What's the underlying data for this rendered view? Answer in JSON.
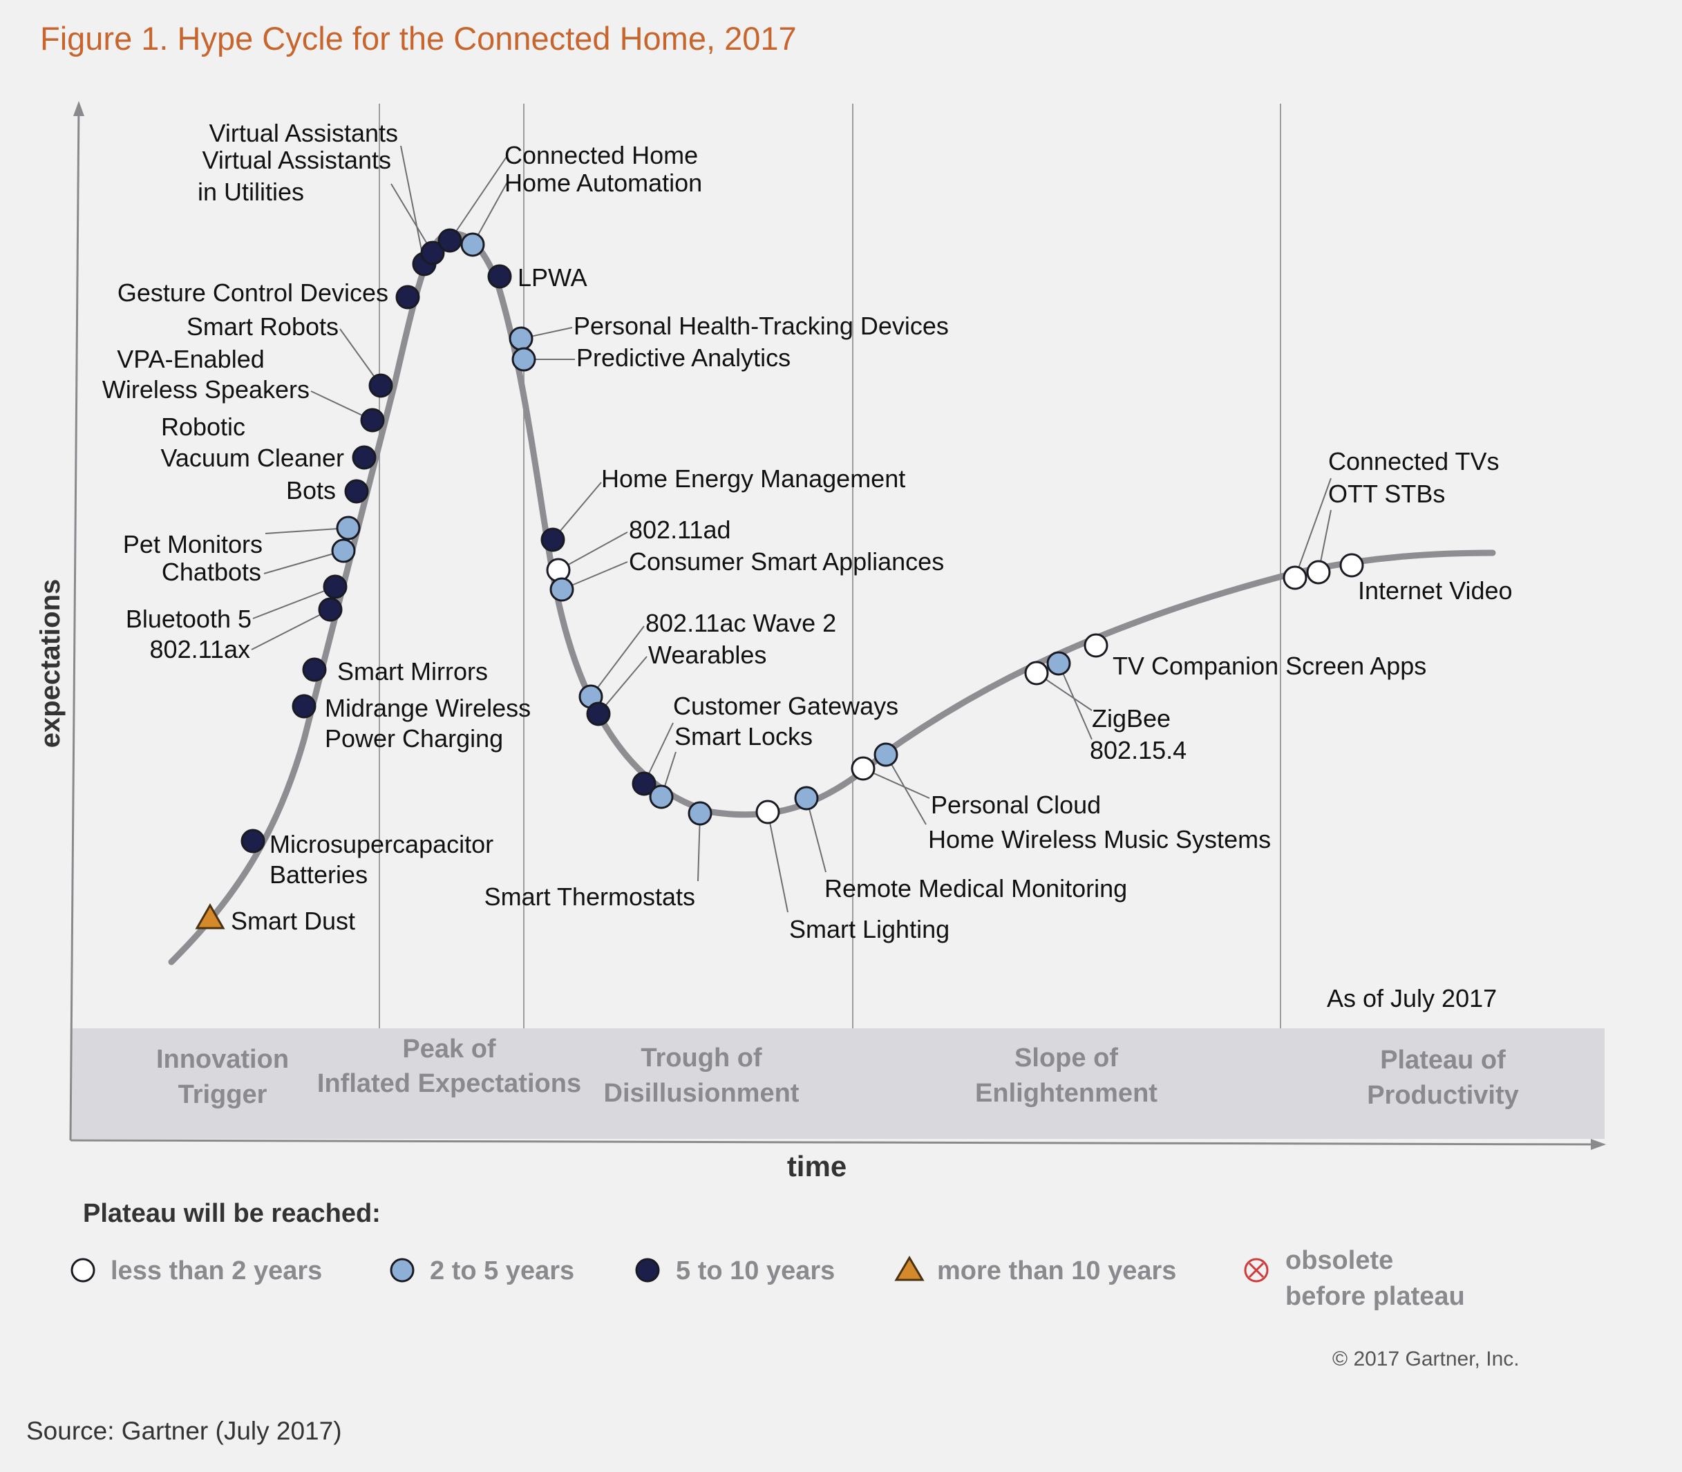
{
  "figure_title": "Figure 1. Hype Cycle for the Connected Home, 2017",
  "source": "Source: Gartner (July 2017)",
  "copyright": "© 2017 Gartner, Inc.",
  "as_of": "As of July 2017",
  "colors": {
    "title": "#c8652d",
    "curve": "#8d8d92",
    "less_than_2": "#ffffff",
    "2_to_5": "#8fb0d6",
    "5_to_10": "#1c1f4a",
    "more_than_10": "#d4892a",
    "obsolete": "#d03a3a",
    "phase_band": "#d9d8dc"
  },
  "chart_data": {
    "type": "scatter",
    "title": "Figure 1. Hype Cycle for the Connected Home, 2017",
    "xlabel": "time",
    "ylabel": "expectations",
    "phases": [
      "Innovation Trigger",
      "Peak of Inflated Expectations",
      "Trough of Disillusionment",
      "Slope of Enlightenment",
      "Plateau of Productivity"
    ],
    "legend": {
      "title": "Plateau will be reached:",
      "items": [
        {
          "key": "lt2",
          "label": "less than 2 years"
        },
        {
          "key": "2to5",
          "label": "2 to 5 years"
        },
        {
          "key": "5to10",
          "label": "5 to 10 years"
        },
        {
          "key": "gt10",
          "label": "more than 10 years"
        },
        {
          "key": "obsolete",
          "label": "obsolete before plateau"
        }
      ]
    },
    "technologies": [
      {
        "name": "Smart Dust",
        "category": "gt10",
        "phase": "Innovation Trigger"
      },
      {
        "name": "Microsupercapacitor Batteries",
        "category": "5to10",
        "phase": "Innovation Trigger"
      },
      {
        "name": "Midrange Wireless Power Charging",
        "category": "5to10",
        "phase": "Innovation Trigger"
      },
      {
        "name": "Smart Mirrors",
        "category": "5to10",
        "phase": "Innovation Trigger"
      },
      {
        "name": "802.11ax",
        "category": "5to10",
        "phase": "Innovation Trigger"
      },
      {
        "name": "Bluetooth 5",
        "category": "5to10",
        "phase": "Innovation Trigger"
      },
      {
        "name": "Chatbots",
        "category": "2to5",
        "phase": "Innovation Trigger"
      },
      {
        "name": "Pet Monitors",
        "category": "2to5",
        "phase": "Innovation Trigger"
      },
      {
        "name": "Bots",
        "category": "5to10",
        "phase": "Innovation Trigger"
      },
      {
        "name": "Robotic Vacuum Cleaner",
        "category": "5to10",
        "phase": "Innovation Trigger"
      },
      {
        "name": "VPA-Enabled Wireless Speakers",
        "category": "5to10",
        "phase": "Innovation Trigger"
      },
      {
        "name": "Smart Robots",
        "category": "5to10",
        "phase": "Innovation Trigger"
      },
      {
        "name": "Gesture Control Devices",
        "category": "5to10",
        "phase": "Peak of Inflated Expectations"
      },
      {
        "name": "Virtual Assistants",
        "category": "5to10",
        "phase": "Peak of Inflated Expectations"
      },
      {
        "name": "Virtual Assistants in Utilities",
        "category": "5to10",
        "phase": "Peak of Inflated Expectations"
      },
      {
        "name": "Connected Home",
        "category": "5to10",
        "phase": "Peak of Inflated Expectations"
      },
      {
        "name": "Home Automation",
        "category": "2to5",
        "phase": "Peak of Inflated Expectations"
      },
      {
        "name": "LPWA",
        "category": "5to10",
        "phase": "Peak of Inflated Expectations"
      },
      {
        "name": "Personal Health-Tracking Devices",
        "category": "2to5",
        "phase": "Peak of Inflated Expectations"
      },
      {
        "name": "Predictive Analytics",
        "category": "2to5",
        "phase": "Peak of Inflated Expectations"
      },
      {
        "name": "Home Energy Management",
        "category": "5to10",
        "phase": "Trough of Disillusionment"
      },
      {
        "name": "802.11ad",
        "category": "lt2",
        "phase": "Trough of Disillusionment"
      },
      {
        "name": "Consumer Smart Appliances",
        "category": "2to5",
        "phase": "Trough of Disillusionment"
      },
      {
        "name": "802.11ac Wave 2",
        "category": "2to5",
        "phase": "Trough of Disillusionment"
      },
      {
        "name": "Wearables",
        "category": "5to10",
        "phase": "Trough of Disillusionment"
      },
      {
        "name": "Customer Gateways",
        "category": "5to10",
        "phase": "Trough of Disillusionment"
      },
      {
        "name": "Smart Locks",
        "category": "2to5",
        "phase": "Trough of Disillusionment"
      },
      {
        "name": "Smart Thermostats",
        "category": "2to5",
        "phase": "Trough of Disillusionment"
      },
      {
        "name": "Smart Lighting",
        "category": "lt2",
        "phase": "Trough of Disillusionment"
      },
      {
        "name": "Remote Medical Monitoring",
        "category": "2to5",
        "phase": "Trough of Disillusionment"
      },
      {
        "name": "Personal Cloud",
        "category": "lt2",
        "phase": "Slope of Enlightenment"
      },
      {
        "name": "Home Wireless Music Systems",
        "category": "2to5",
        "phase": "Slope of Enlightenment"
      },
      {
        "name": "ZigBee",
        "category": "lt2",
        "phase": "Slope of Enlightenment"
      },
      {
        "name": "802.15.4",
        "category": "2to5",
        "phase": "Slope of Enlightenment"
      },
      {
        "name": "TV Companion Screen Apps",
        "category": "lt2",
        "phase": "Slope of Enlightenment"
      },
      {
        "name": "Connected TVs",
        "category": "lt2",
        "phase": "Plateau of Productivity"
      },
      {
        "name": "OTT STBs",
        "category": "lt2",
        "phase": "Plateau of Productivity"
      },
      {
        "name": "Internet Video",
        "category": "lt2",
        "phase": "Plateau of Productivity"
      }
    ]
  }
}
